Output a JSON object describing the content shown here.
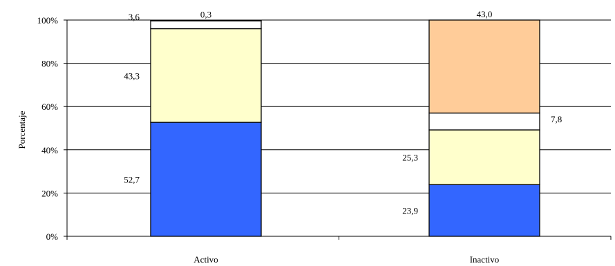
{
  "chart_data": {
    "type": "bar",
    "stacked": true,
    "percent": true,
    "title": "",
    "xlabel": "",
    "ylabel": "Porcentaje",
    "ylim": [
      0,
      100
    ],
    "yticks": [
      0,
      20,
      40,
      60,
      80,
      100
    ],
    "ytick_labels": [
      "0%",
      "20%",
      "40%",
      "60%",
      "80%",
      "100%"
    ],
    "grid": true,
    "legend": "none",
    "categories": [
      "Activo",
      "Inactivo"
    ],
    "series": [
      {
        "color": "#3366ff",
        "values": [
          52.7,
          23.9
        ],
        "labels": [
          "52,7",
          "23,9"
        ]
      },
      {
        "color": "#ffffcc",
        "values": [
          43.3,
          25.3
        ],
        "labels": [
          "43,3",
          "25,3"
        ]
      },
      {
        "color": "#ffffff",
        "values": [
          3.6,
          7.8
        ],
        "labels": [
          "3,6",
          "7,8"
        ]
      },
      {
        "color": "#ffffff",
        "values": [
          0.3,
          0
        ],
        "labels": [
          "0,3",
          ""
        ]
      },
      {
        "color": "#ffcc99",
        "values": [
          0,
          43.0
        ],
        "labels": [
          "",
          "43,0"
        ]
      }
    ]
  }
}
